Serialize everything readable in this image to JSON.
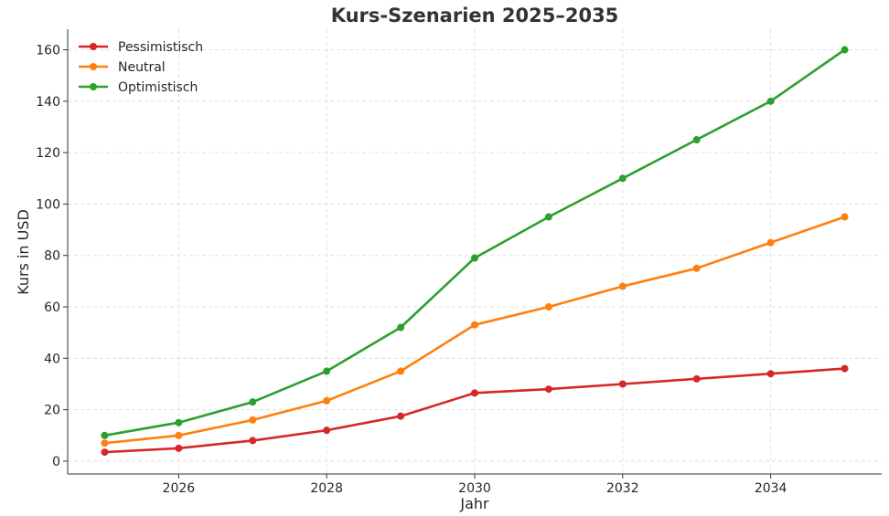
{
  "chart_data": {
    "type": "line",
    "title": "Kurs-Szenarien 2025–2035",
    "xlabel": "Jahr",
    "ylabel": "Kurs in USD",
    "x": [
      2025,
      2026,
      2027,
      2028,
      2029,
      2030,
      2031,
      2032,
      2033,
      2034,
      2035
    ],
    "xlim": [
      2024.5,
      2035.5
    ],
    "ylim": [
      -5,
      168
    ],
    "xticks": [
      2026,
      2028,
      2030,
      2032,
      2034
    ],
    "yticks": [
      0,
      20,
      40,
      60,
      80,
      100,
      120,
      140,
      160
    ],
    "grid": true,
    "legend_position": "top-left",
    "series": [
      {
        "name": "Pessimistisch",
        "color": "#d62728",
        "values": [
          3.5,
          5,
          8,
          12,
          17.5,
          26.5,
          28,
          30,
          32,
          34,
          36
        ]
      },
      {
        "name": "Neutral",
        "color": "#ff7f0e",
        "values": [
          7,
          10,
          16,
          23.5,
          35,
          53,
          60,
          68,
          75,
          85,
          95
        ]
      },
      {
        "name": "Optimistisch",
        "color": "#2ca02c",
        "values": [
          10,
          15,
          23,
          35,
          52,
          79,
          95,
          110,
          125,
          140,
          160
        ]
      }
    ]
  }
}
